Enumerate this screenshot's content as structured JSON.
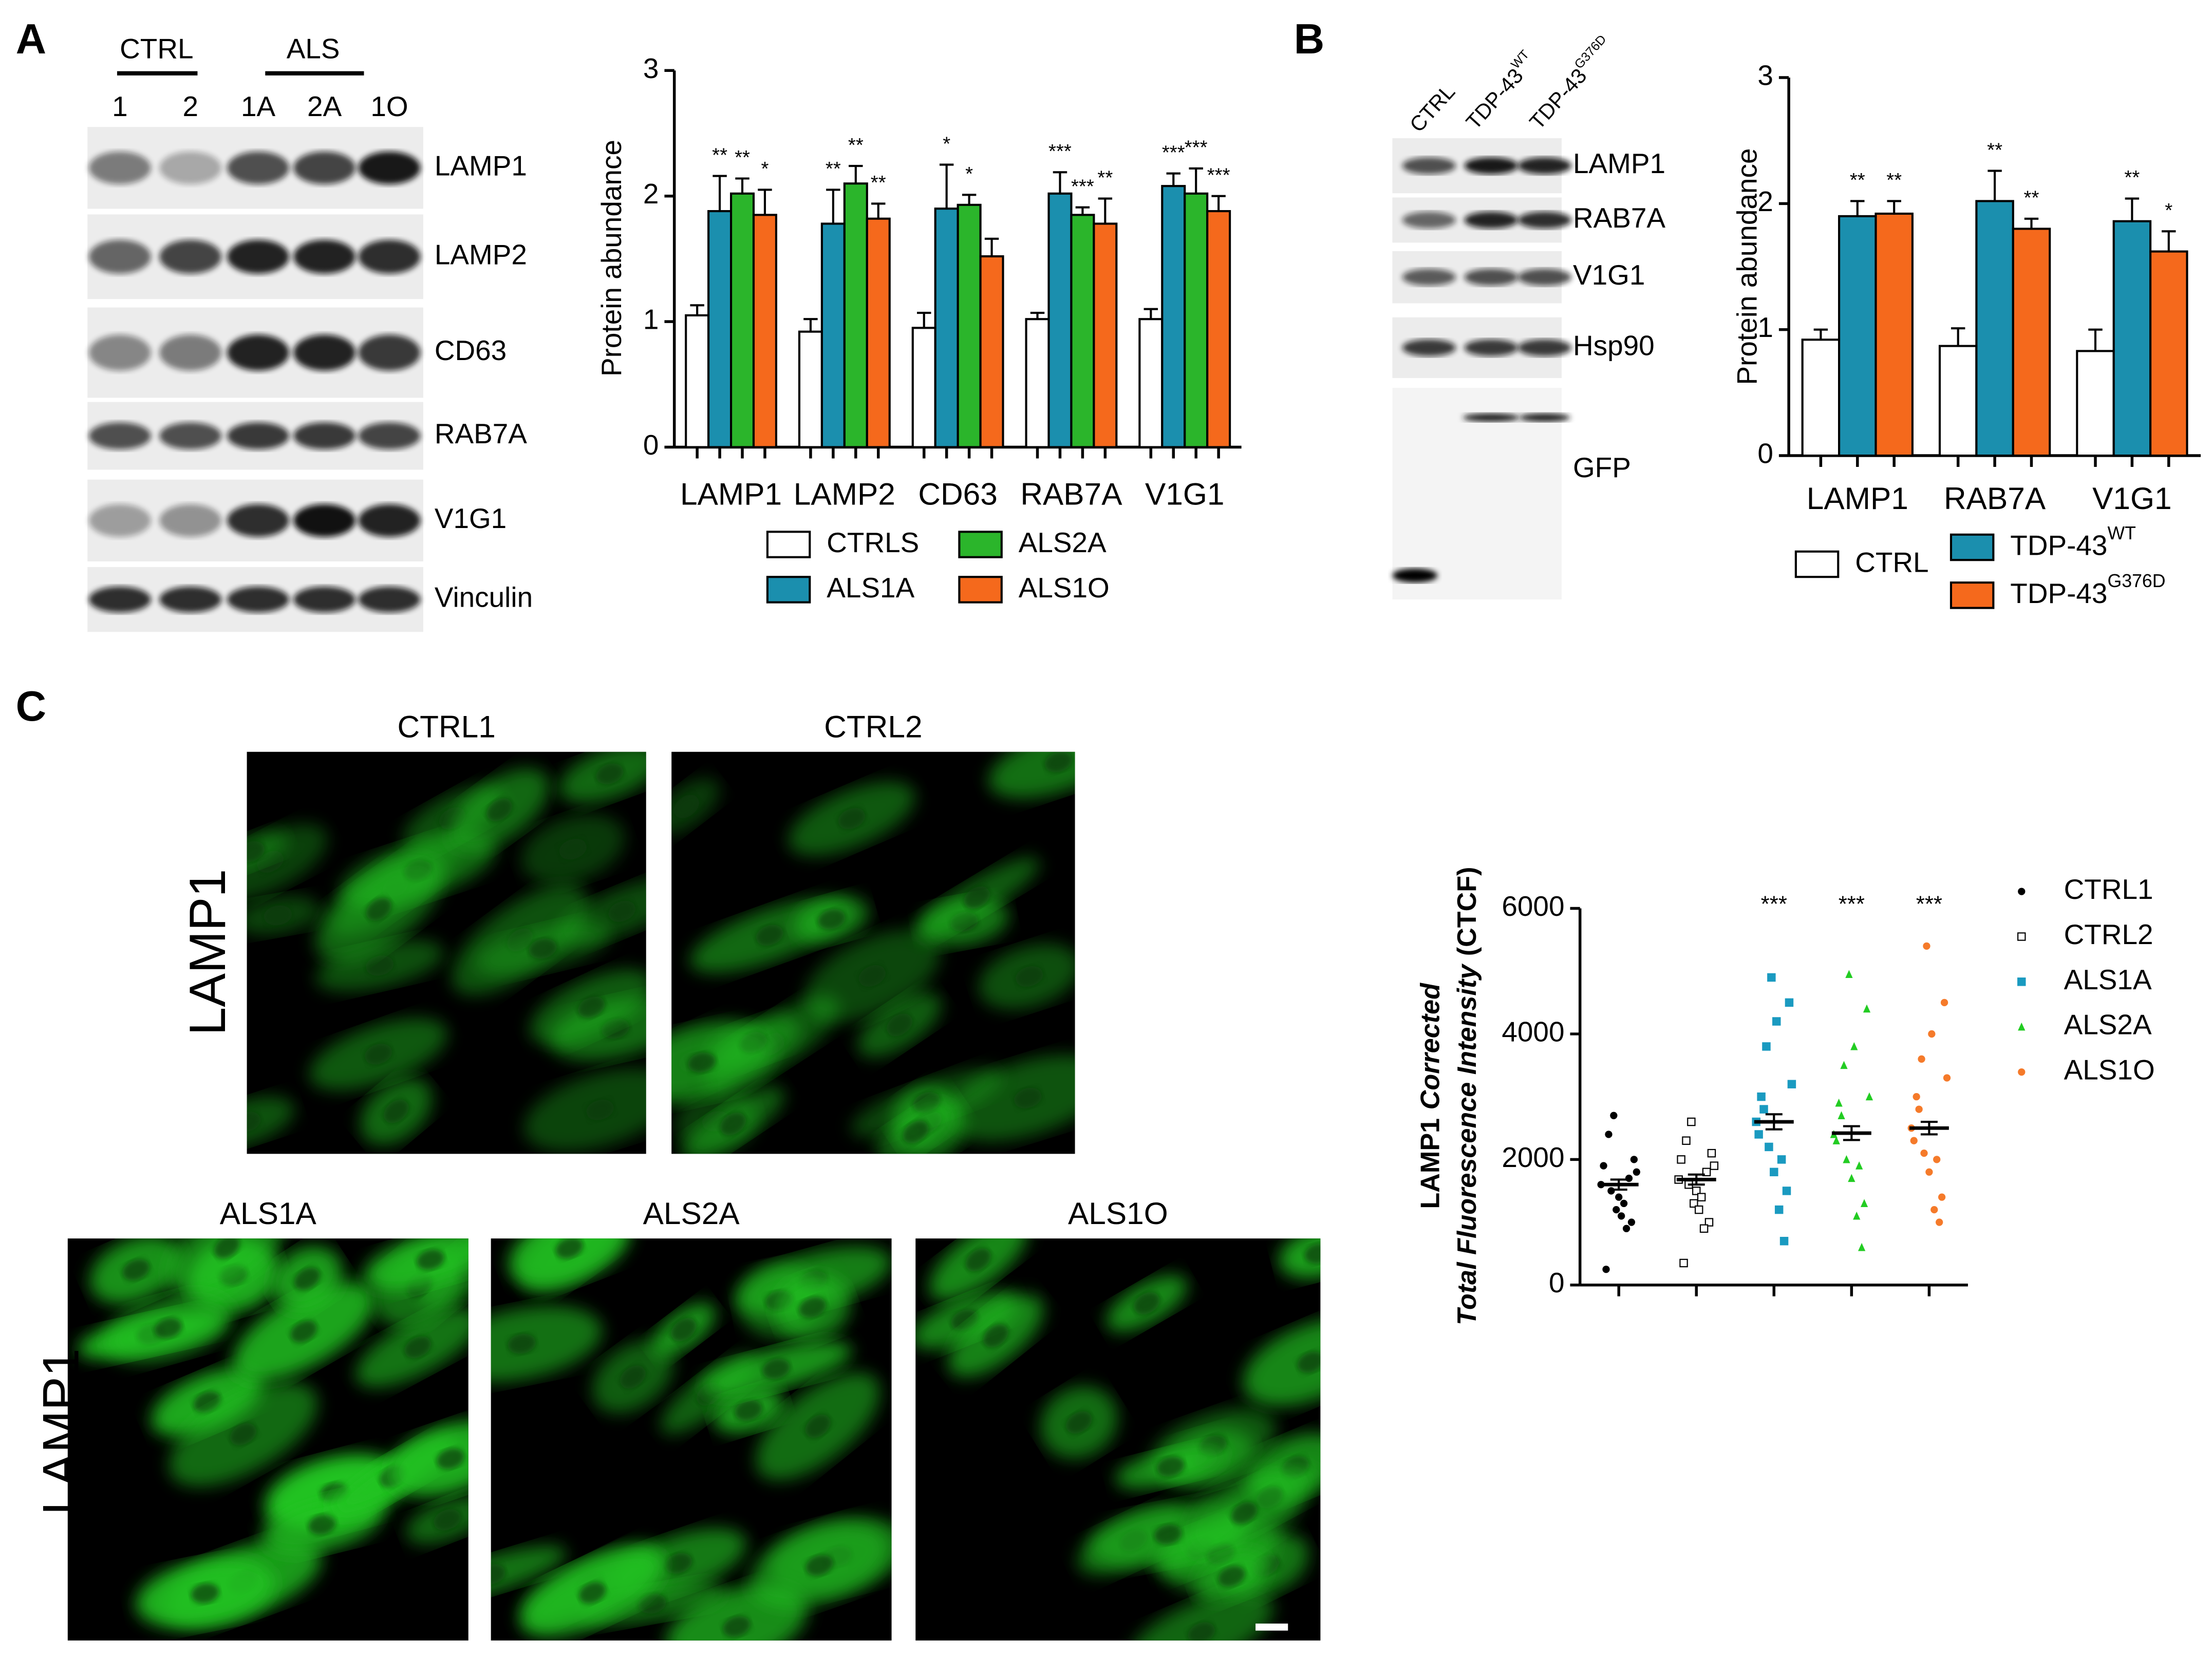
{
  "panel_labels": [
    "A",
    "B",
    "C"
  ],
  "blots_a": {
    "groups": [
      "CTRL",
      "ALS"
    ],
    "lanes": [
      "1",
      "2",
      "1A",
      "2A",
      "1O"
    ],
    "rows": [
      "LAMP1",
      "LAMP2",
      "CD63",
      "RAB7A",
      "V1G1",
      "Vinculin"
    ]
  },
  "blots_b": {
    "lanes": [
      {
        "text": "CTRL"
      },
      {
        "text": "TDP-43",
        "sup": "WT"
      },
      {
        "text": "TDP-43",
        "sup": "G376D"
      }
    ],
    "rows": [
      "LAMP1",
      "RAB7A",
      "V1G1",
      "Hsp90",
      "GFP"
    ]
  },
  "micrographs": {
    "stain": "LAMP1",
    "top": [
      "CTRL1",
      "CTRL2"
    ],
    "bottom": [
      "ALS1A",
      "ALS2A",
      "ALS1O"
    ]
  },
  "chart_data": [
    {
      "type": "bar",
      "ylabel": "Protein abundance",
      "categories": [
        "LAMP1",
        "LAMP2",
        "CD63",
        "RAB7A",
        "V1G1"
      ],
      "ylim": [
        0,
        3
      ],
      "yticks": [
        0,
        1,
        2,
        3
      ],
      "series": [
        {
          "name": "CTRLS",
          "color": "#ffffff",
          "values": [
            1.05,
            0.92,
            0.95,
            1.02,
            1.02
          ],
          "errors": [
            0.08,
            0.1,
            0.12,
            0.05,
            0.08
          ]
        },
        {
          "name": "ALS1A",
          "color": "#1b8fae",
          "values": [
            1.88,
            1.78,
            1.9,
            2.02,
            2.08
          ],
          "errors": [
            0.28,
            0.27,
            0.35,
            0.17,
            0.1
          ],
          "stars": [
            "**",
            "**",
            "*",
            "***",
            "***"
          ]
        },
        {
          "name": "ALS2A",
          "color": "#2bb52b",
          "values": [
            2.02,
            2.1,
            1.93,
            1.85,
            2.02
          ],
          "errors": [
            0.12,
            0.14,
            0.08,
            0.06,
            0.2
          ],
          "stars": [
            "**",
            "**",
            "*",
            "***",
            "***"
          ]
        },
        {
          "name": "ALS1O",
          "color": "#f5691c",
          "values": [
            1.85,
            1.82,
            1.52,
            1.78,
            1.88
          ],
          "errors": [
            0.2,
            0.12,
            0.14,
            0.2,
            0.12
          ],
          "stars": [
            "*",
            "**",
            null,
            "**",
            "***"
          ]
        }
      ]
    },
    {
      "type": "bar",
      "ylabel": "Protein abundance",
      "categories": [
        "LAMP1",
        "RAB7A",
        "V1G1"
      ],
      "ylim": [
        0,
        3
      ],
      "yticks": [
        0,
        1,
        2,
        3
      ],
      "series": [
        {
          "name": "CTRL",
          "color": "#ffffff",
          "values": [
            0.92,
            0.87,
            0.83
          ],
          "errors": [
            0.08,
            0.14,
            0.17
          ]
        },
        {
          "name": "TDP-43",
          "sup": "WT",
          "color": "#1b8fae",
          "values": [
            1.9,
            2.02,
            1.86
          ],
          "errors": [
            0.12,
            0.24,
            0.18
          ],
          "stars": [
            "**",
            "**",
            "**"
          ]
        },
        {
          "name": "TDP-43",
          "sup": "G376D",
          "color": "#f5691c",
          "values": [
            1.92,
            1.8,
            1.62
          ],
          "errors": [
            0.1,
            0.08,
            0.16
          ],
          "stars": [
            "**",
            "**",
            "*"
          ]
        }
      ]
    },
    {
      "type": "strip",
      "ylabel": [
        [
          {
            "text": "LAMP1"
          },
          {
            "text": "Corrected",
            "italic": true
          }
        ],
        [
          {
            "text": "Total Fluorescence Intensity",
            "italic": true
          },
          {
            "text": "(CTCF)"
          }
        ]
      ],
      "ylim": [
        0,
        6000
      ],
      "yticks": [
        0,
        2000,
        4000,
        6000
      ],
      "series": [
        {
          "name": "CTRL1",
          "color": "#000000",
          "marker": "circle",
          "mean": 1600,
          "error": 80,
          "values": [
            1600,
            1400,
            1800,
            1200,
            2000,
            2700,
            1000,
            1500,
            1700,
            2400,
            900,
            250,
            1300,
            1900,
            1100
          ]
        },
        {
          "name": "CTRL2",
          "color": "#000000",
          "marker": "square-open",
          "mean": 1680,
          "error": 80,
          "values": [
            1680,
            1500,
            1900,
            1300,
            2100,
            2600,
            1000,
            1600,
            1800,
            2300,
            900,
            350,
            1400,
            2000,
            1200
          ]
        },
        {
          "name": "ALS1A",
          "color": "#1a9ac0",
          "marker": "square",
          "mean": 2600,
          "error": 120,
          "stars": "***",
          "values": [
            2600,
            1800,
            3200,
            4900,
            4500,
            2200,
            1500,
            3800,
            700,
            2800,
            2000,
            3000,
            1200,
            2400,
            4200
          ]
        },
        {
          "name": "ALS2A",
          "color": "#22cc22",
          "marker": "triangle",
          "mean": 2420,
          "error": 110,
          "stars": "***",
          "values": [
            2400,
            1700,
            3000,
            4950,
            4400,
            2000,
            1300,
            3500,
            600,
            2700,
            1900,
            2900,
            1100,
            2300,
            3800
          ]
        },
        {
          "name": "ALS1O",
          "color": "#f57a2a",
          "marker": "circle",
          "mean": 2500,
          "error": 100,
          "stars": "***",
          "values": [
            2500,
            1800,
            3300,
            5400,
            4500,
            2100,
            1400,
            3600,
            1000,
            2800,
            2000,
            3000,
            1200,
            2300,
            4000
          ]
        }
      ]
    }
  ]
}
